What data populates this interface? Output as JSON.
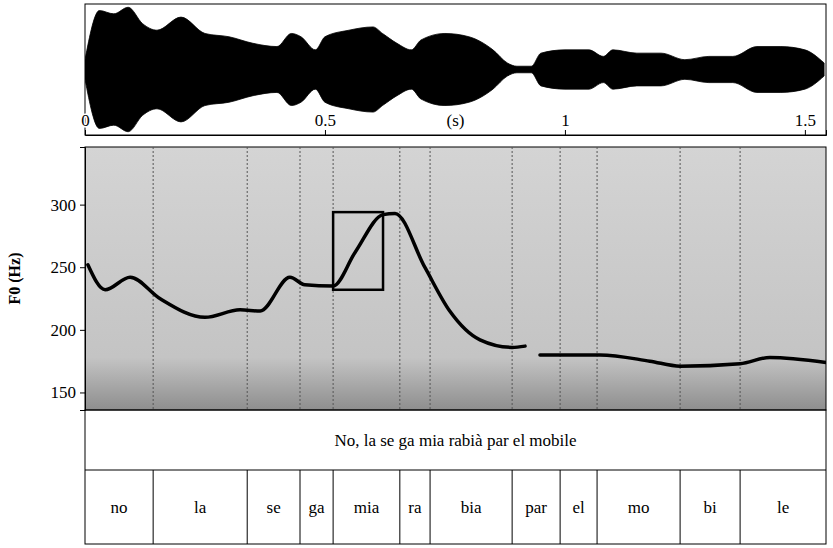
{
  "chart_data": [
    {
      "type": "area",
      "x": [
        0,
        0.03,
        0.06,
        0.09,
        0.12,
        0.15,
        0.2,
        0.25,
        0.3,
        0.35,
        0.4,
        0.43,
        0.45,
        0.48,
        0.5,
        0.55,
        0.6,
        0.62,
        0.65,
        0.68,
        0.7,
        0.75,
        0.8,
        0.85,
        0.88,
        0.9,
        0.93,
        0.95,
        1.0,
        1.05,
        1.08,
        1.1,
        1.15,
        1.2,
        1.25,
        1.3,
        1.35,
        1.4,
        1.45,
        1.5,
        1.54
      ],
      "values": [
        0.15,
        0.9,
        0.85,
        0.95,
        0.7,
        0.6,
        0.8,
        0.55,
        0.5,
        0.4,
        0.35,
        0.55,
        0.5,
        0.3,
        0.5,
        0.6,
        0.65,
        0.55,
        0.4,
        0.3,
        0.45,
        0.55,
        0.5,
        0.3,
        0.1,
        0.05,
        0.05,
        0.25,
        0.3,
        0.3,
        0.2,
        0.3,
        0.25,
        0.25,
        0.15,
        0.2,
        0.2,
        0.35,
        0.35,
        0.3,
        0.1
      ],
      "color": "#000000",
      "xlim": [
        0,
        1.544
      ],
      "xticks": [
        0,
        0.5,
        1,
        1.5
      ],
      "xlabel": "(s)",
      "ylim": [
        -1,
        1
      ],
      "tick_labels": "x"
    },
    {
      "type": "line",
      "x": [
        0.006,
        0.042,
        0.094,
        0.156,
        0.25,
        0.323,
        0.365,
        0.427,
        0.458,
        0.517,
        0.563,
        0.621,
        0.646,
        0.708,
        0.76,
        0.823,
        0.89,
        0.917,
        0.93,
        0.948,
        1.073,
        1.177,
        1.24,
        1.365,
        1.427,
        1.544
      ],
      "values": [
        252,
        232,
        242,
        225,
        210,
        216,
        215,
        242,
        236,
        235,
        262,
        292,
        293,
        250,
        215,
        192,
        186,
        187,
        null,
        180,
        180,
        175,
        171,
        173,
        178,
        174
      ],
      "color": "#000000",
      "xlim": [
        0,
        1.544
      ],
      "ylim": [
        136,
        346
      ],
      "yticks": [
        150,
        200,
        250,
        300
      ],
      "ylabel": "F0 (Hz)",
      "tick_labels": "y",
      "annotation_box": {
        "x": [
          0.517,
          0.621
        ],
        "y": [
          232,
          294
        ]
      },
      "transcription": "No, la se ga mia rabià par el mobile",
      "syllables": [
        "no",
        "la",
        "se",
        "ga",
        "mia",
        "ra",
        "bia",
        "par",
        "el",
        "mo",
        "bi",
        "le"
      ],
      "syllable_bounds": [
        0,
        0.142,
        0.338,
        0.448,
        0.517,
        0.656,
        0.719,
        0.89,
        0.99,
        1.067,
        1.24,
        1.365,
        1.544
      ]
    }
  ]
}
